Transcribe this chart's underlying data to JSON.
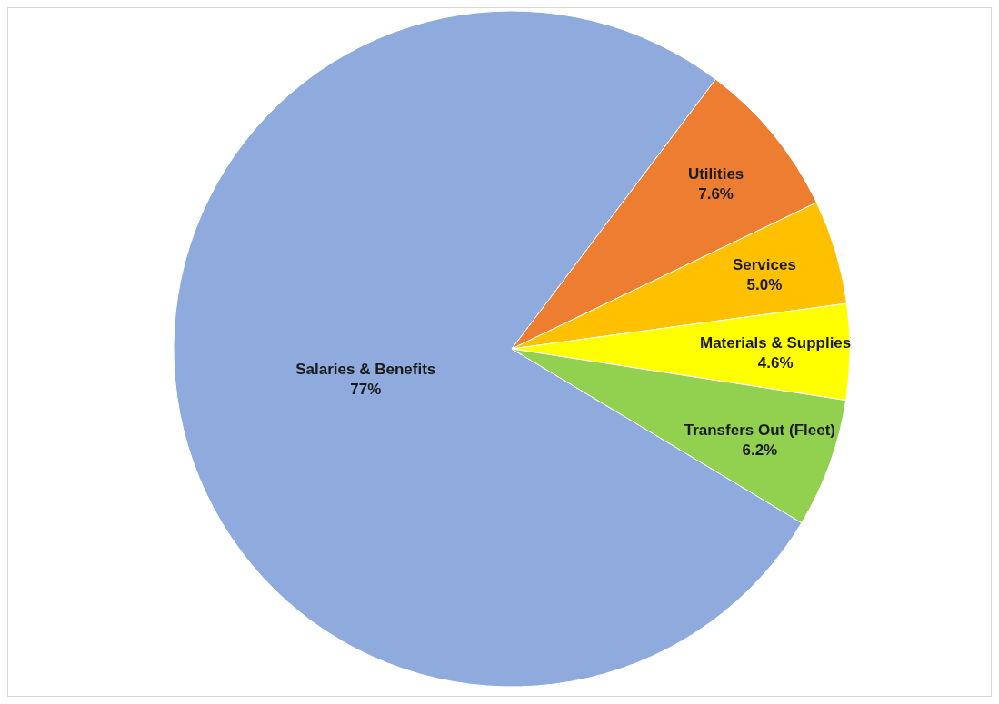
{
  "chart_data": {
    "type": "pie",
    "categories": [
      "Salaries & Benefits",
      "Utilities",
      "Services",
      "Materials & Supplies",
      "Transfers Out (Fleet)"
    ],
    "values": [
      77,
      7.6,
      5.0,
      4.6,
      6.2
    ],
    "value_labels": [
      "77%",
      "7.6%",
      "5.0%",
      "4.6%",
      "6.2%"
    ],
    "colors": [
      "#8faadc",
      "#ed7d31",
      "#ffc000",
      "#ffff00",
      "#92d050"
    ]
  }
}
